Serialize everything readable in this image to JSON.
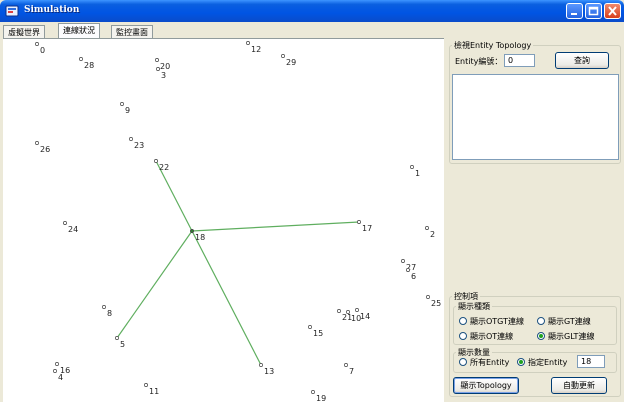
{
  "window": {
    "title": "Simulation",
    "titlebar_color": "#0054e3"
  },
  "tabs": [
    {
      "label": "虛擬世界"
    },
    {
      "label": "連線狀況"
    },
    {
      "label": "監控畫面"
    }
  ],
  "canvas": {
    "nodes": [
      {
        "id": "0"
      },
      {
        "id": "28"
      },
      {
        "id": "20"
      },
      {
        "id": "3"
      },
      {
        "id": "12"
      },
      {
        "id": "29"
      },
      {
        "id": "9"
      },
      {
        "id": "23"
      },
      {
        "id": "26"
      },
      {
        "id": "22"
      },
      {
        "id": "1"
      },
      {
        "id": "24"
      },
      {
        "id": "18"
      },
      {
        "id": "17"
      },
      {
        "id": "2"
      },
      {
        "id": "27"
      },
      {
        "id": "6"
      },
      {
        "id": "25"
      },
      {
        "id": "8"
      },
      {
        "id": "21"
      },
      {
        "id": "10"
      },
      {
        "id": "14"
      },
      {
        "id": "15"
      },
      {
        "id": "5"
      },
      {
        "id": "16"
      },
      {
        "id": "4"
      },
      {
        "id": "13"
      },
      {
        "id": "7"
      },
      {
        "id": "11"
      },
      {
        "id": "19"
      }
    ],
    "links": [
      {
        "from": "18",
        "to": "22"
      },
      {
        "from": "18",
        "to": "17"
      },
      {
        "from": "18",
        "to": "5"
      },
      {
        "from": "18",
        "to": "13"
      }
    ],
    "link_color": "#5fae5f"
  },
  "topology_query": {
    "group_label": "檢視Entity Topology",
    "entity_label": "Entity編號：",
    "entity_value": "0",
    "query_button": "查詢"
  },
  "control": {
    "group_label": "控制項",
    "display_type_label": "顯示種類",
    "options": [
      {
        "label": "顯示OTGT連線",
        "selected": false
      },
      {
        "label": "顯示GT連線",
        "selected": false
      },
      {
        "label": "顯示OT連線",
        "selected": false
      },
      {
        "label": "顯示GLT連線",
        "selected": true
      }
    ],
    "display_count_label": "顯示數量",
    "all_entity_label": "所有Entity",
    "all_entity_selected": false,
    "specific_entity_label": "指定Entity",
    "specific_entity_selected": true,
    "specific_entity_value": "18",
    "show_topology_button": "顯示Topology",
    "auto_update_button": "自動更新"
  }
}
